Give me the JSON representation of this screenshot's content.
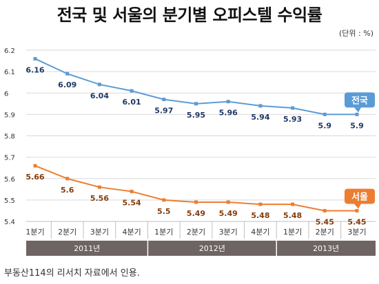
{
  "title": "전국 및 서울의 분기별 오피스텔 수익률",
  "unit_label": "(단위 : %)",
  "source": "부동산114의 리서치 자료에서 인용.",
  "chart_data": {
    "type": "line",
    "categories": [
      "1분기",
      "2분기",
      "3분기",
      "4분기",
      "1분기",
      "2분기",
      "3분기",
      "4분기",
      "1분기",
      "2분기",
      "3분기"
    ],
    "year_groups": [
      {
        "label": "2011년",
        "count": 4
      },
      {
        "label": "2012년",
        "count": 4
      },
      {
        "label": "2013년",
        "count": 3
      }
    ],
    "series": [
      {
        "name": "전국",
        "color": "#5b9bd5",
        "label_color": "#1f3864",
        "values": [
          6.16,
          6.09,
          6.04,
          6.01,
          5.97,
          5.95,
          5.96,
          5.94,
          5.93,
          5.9,
          5.9
        ]
      },
      {
        "name": "서울",
        "color": "#ed7d31",
        "label_color": "#843c0c",
        "values": [
          5.66,
          5.6,
          5.56,
          5.54,
          5.5,
          5.49,
          5.49,
          5.48,
          5.48,
          5.45,
          5.45
        ]
      }
    ],
    "yticks": [
      "5.4",
      "5.5",
      "5.6",
      "5.7",
      "5.8",
      "5.9",
      "6",
      "6.1",
      "6.2"
    ],
    "ylim": [
      5.4,
      6.2
    ],
    "grid": true,
    "group_bar_color": "#6d6463"
  }
}
